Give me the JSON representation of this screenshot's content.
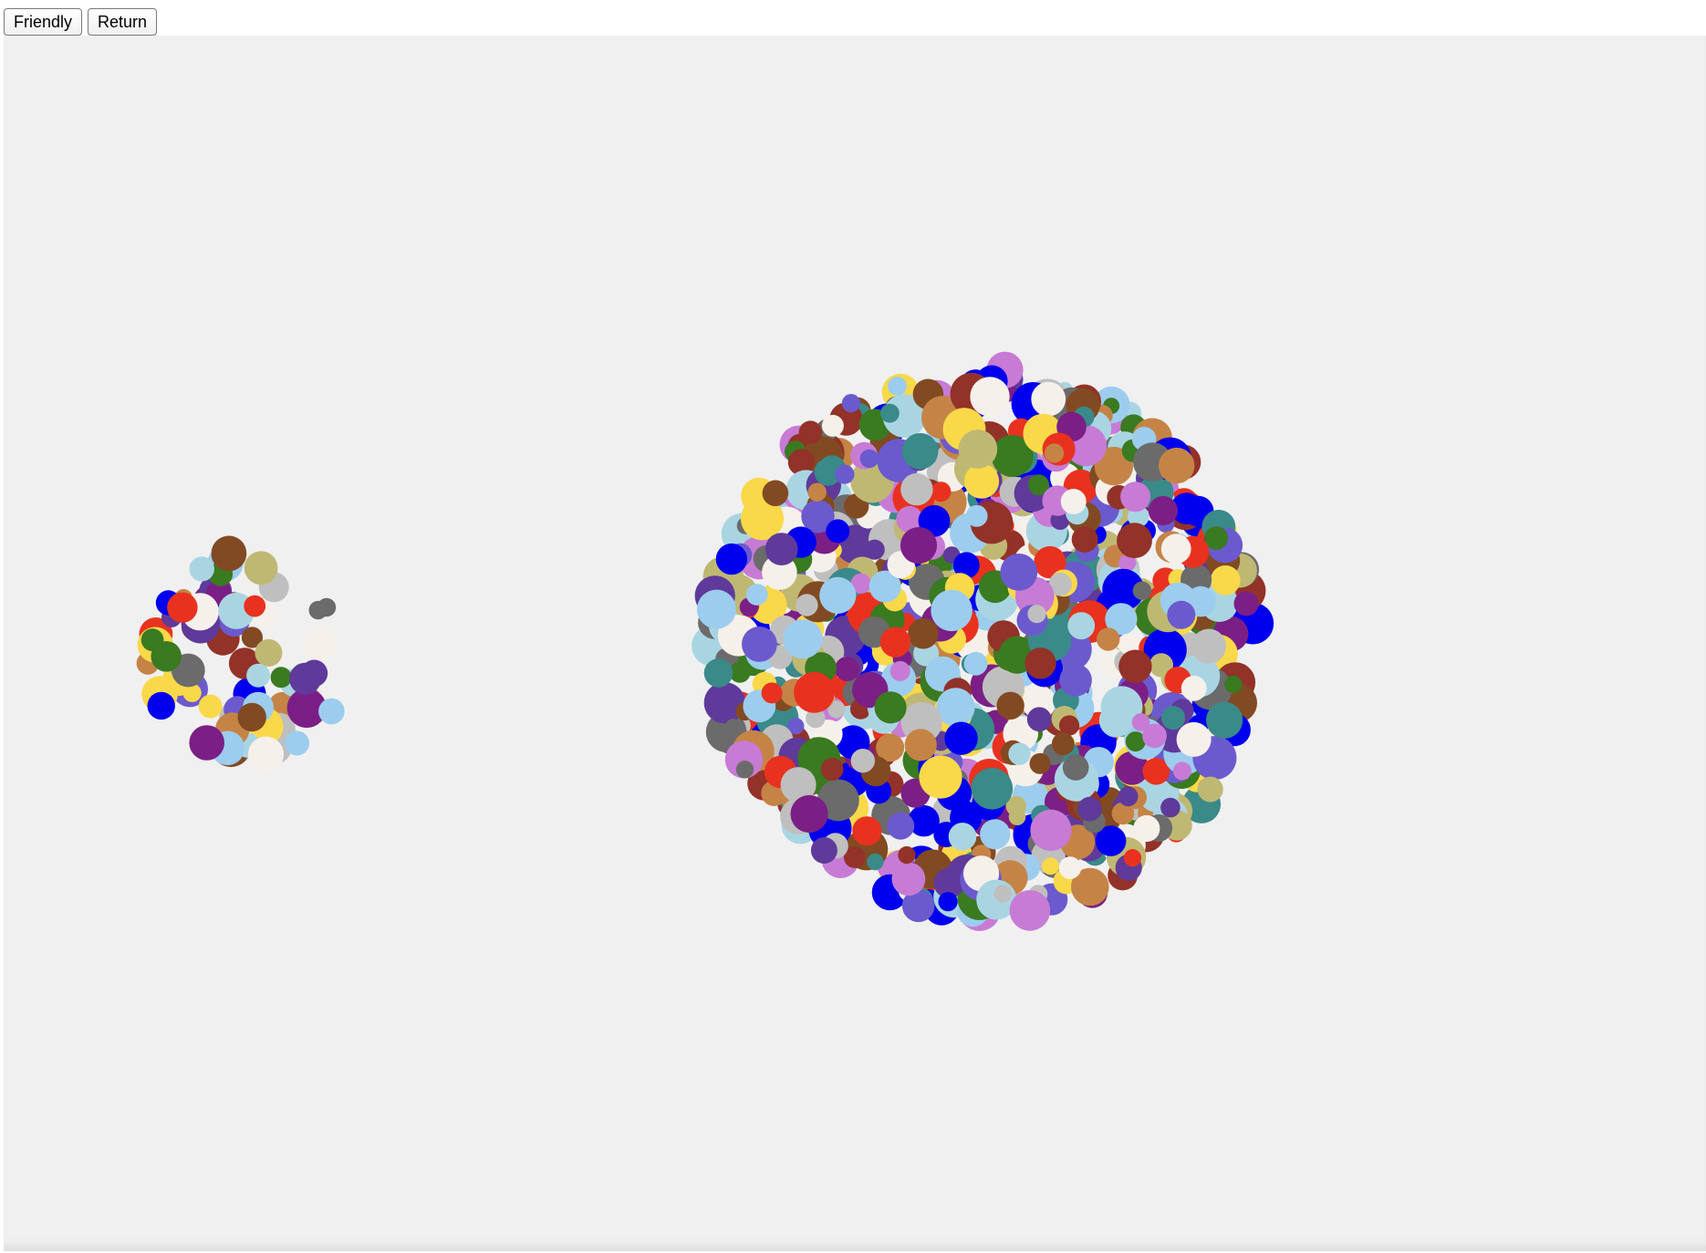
{
  "toolbar": {
    "friendly_label": "Friendly",
    "return_label": "Return"
  },
  "palette": [
    "#0000ee",
    "#e8321f",
    "#3a7a20",
    "#6b5acd",
    "#f6f0ea",
    "#f9d949",
    "#bfb873",
    "#933228",
    "#824a22",
    "#c58446",
    "#3a8a8a",
    "#6b6b6b",
    "#7b1f86",
    "#c77bd5",
    "#a9d5e3",
    "#bfbfbf",
    "#5f3a9a",
    "#9ccdee"
  ]
}
